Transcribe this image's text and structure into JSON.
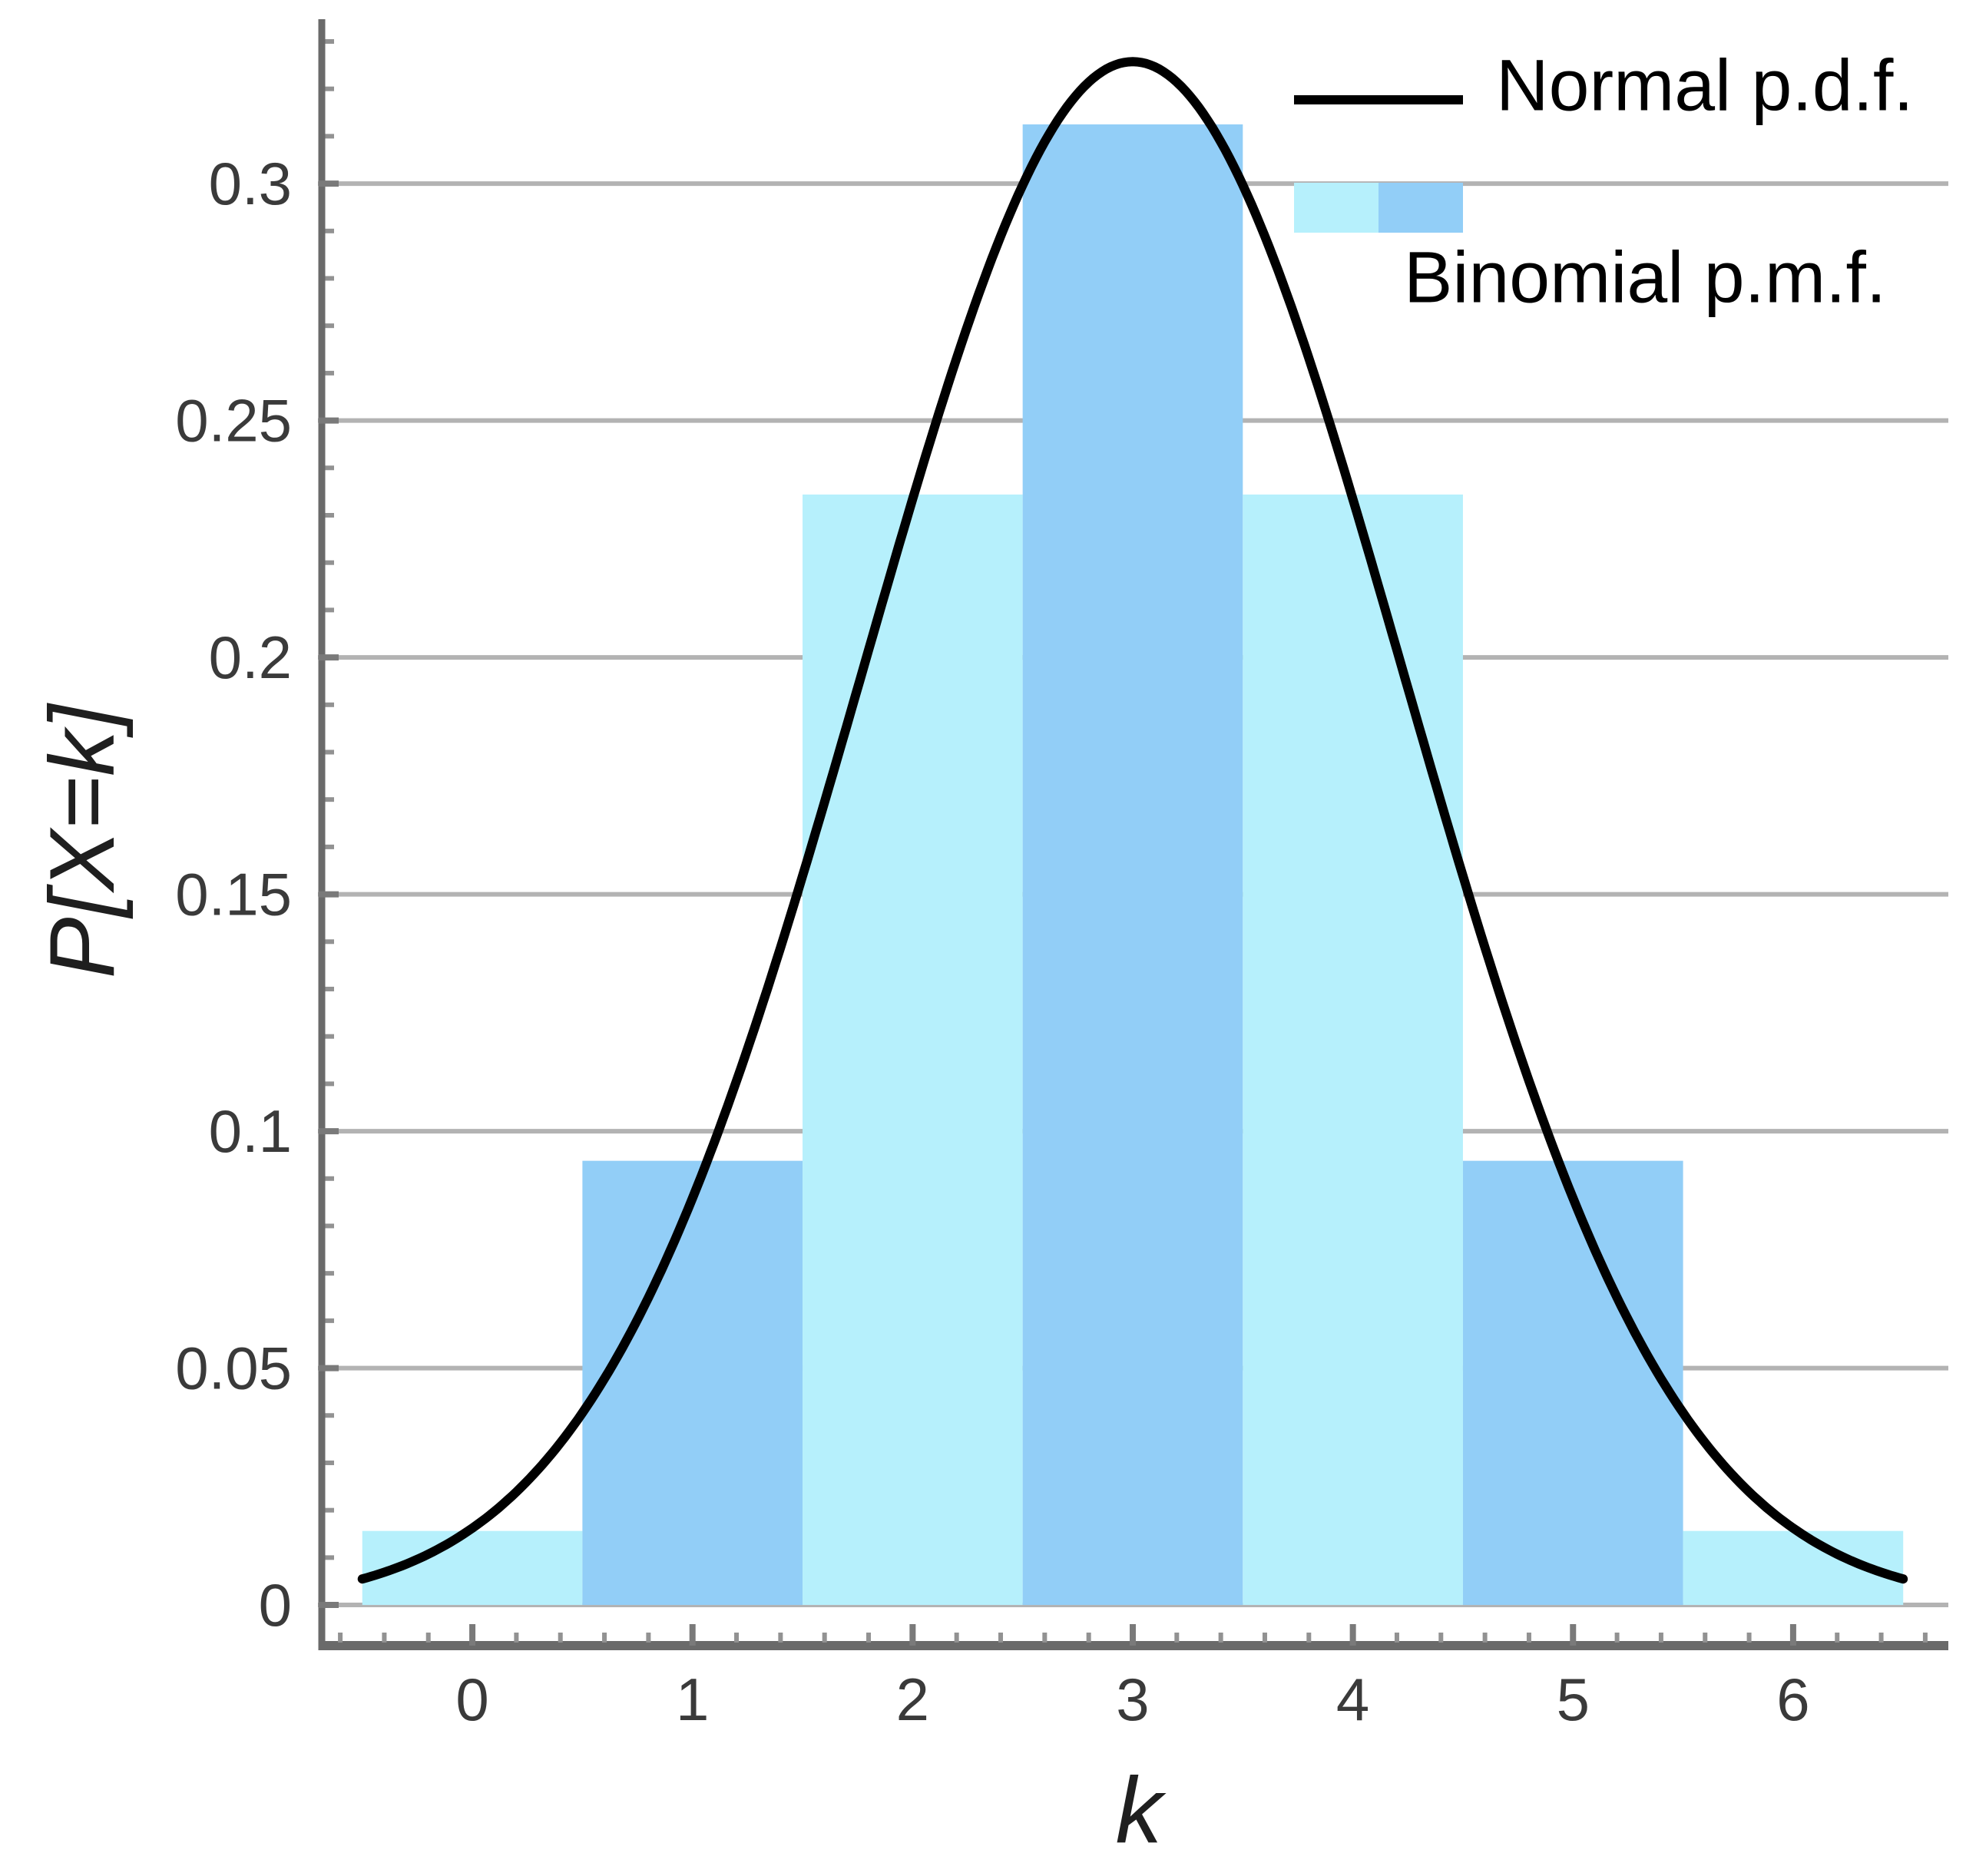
{
  "figure": {
    "background": "#ffffff"
  },
  "axis_labels": {
    "y": "P[X=k]",
    "x": "k"
  },
  "legend": {
    "line_label": "Normal p.d.f.",
    "swatch_label": "Binomial p.m.f."
  },
  "colors": {
    "bar_light": "#b6f0fc",
    "bar_blue": "#92cef7",
    "curve": "#000000",
    "gridline": "#b3b3b3",
    "axis": "#6a6a6a",
    "tick_major": "#7a7a7a",
    "tick_minor": "#929292",
    "tick_label": "#3a3a3a"
  },
  "chart_data": {
    "type": "bar",
    "title": "",
    "xlabel": "k",
    "ylabel": "P[X=k]",
    "grid": "horizontal",
    "legend_position": "top-right",
    "categories": [
      0,
      1,
      2,
      3,
      4,
      5,
      6
    ],
    "series": [
      {
        "name": "Binomial p.m.f.",
        "type": "bar",
        "x": [
          0,
          1,
          2,
          3,
          4,
          5,
          6
        ],
        "values": [
          0.015625,
          0.09375,
          0.234375,
          0.3125,
          0.234375,
          0.09375,
          0.015625
        ],
        "bar_width": 1,
        "color_pattern": [
          "bar_light",
          "bar_blue"
        ]
      },
      {
        "name": "Normal p.d.f.",
        "type": "line",
        "model": "normal_pdf",
        "mu": 3,
        "sigma": 1.2247448714,
        "peak_value": 0.3257,
        "x_range": [
          -0.5,
          6.5
        ]
      }
    ],
    "x_ticks": [
      0,
      1,
      2,
      3,
      4,
      5,
      6
    ],
    "x_tick_labels": [
      "0",
      "1",
      "2",
      "3",
      "4",
      "5",
      "6"
    ],
    "y_ticks": [
      0,
      0.05,
      0.1,
      0.15,
      0.2,
      0.25,
      0.3
    ],
    "y_tick_labels": [
      "0",
      "0.05",
      "0.1",
      "0.15",
      "0.2",
      "0.25",
      "0.3"
    ],
    "x_minor_step": 0.2,
    "y_minor_step": 0.01,
    "xlim": [
      -0.684,
      6.705
    ],
    "ylim": [
      -0.00858,
      0.3347
    ]
  }
}
